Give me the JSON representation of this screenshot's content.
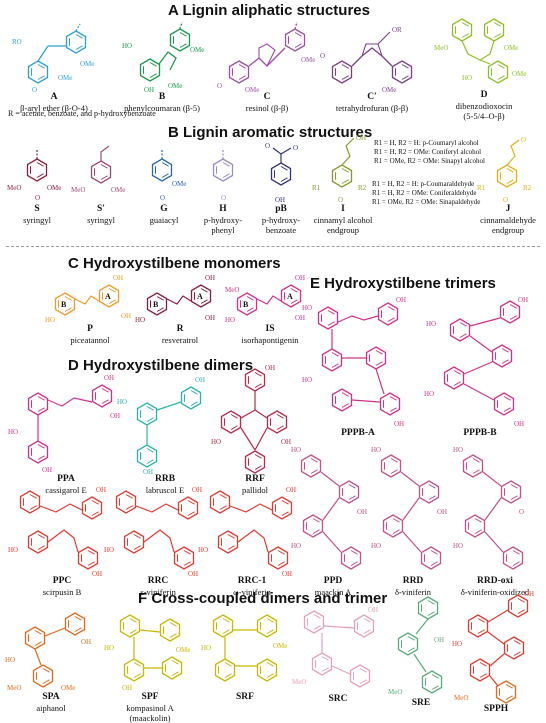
{
  "sections": {
    "A": "A  Lignin aliphatic structures",
    "B": "B  Lignin aromatic structures",
    "C": "C  Hydroxystilbene monomers",
    "D": "D  Hydroxystilbene dimers",
    "E": "E  Hydroxystilbene trimers",
    "F": "F  Cross-coupled dimers and trimer"
  },
  "colors": {
    "blue": "#2f9fd8",
    "green": "#1a9a4a",
    "purple": "#9b4fa6",
    "violet": "#7a3f8a",
    "lime": "#8dbf2a",
    "maroon": "#8a1f3d",
    "darkblue": "#2a67a8",
    "lavender": "#9b8ac4",
    "navy": "#33357a",
    "olive": "#8a9a2a",
    "gold": "#e0b012",
    "orange": "#f09a28",
    "magenta": "#d1338a",
    "crimson": "#b8294a",
    "pink": "#e07aa8",
    "teal": "#2bb3b0",
    "red": "#e03c31",
    "rose": "#c4508c",
    "orange2": "#e06a1e",
    "yellow": "#c9b800",
    "lightpink": "#e8a0bc",
    "seafoam": "#5aaa7a"
  },
  "sectionA": {
    "items": [
      {
        "code": "A",
        "name": "β-aryl ether (β-O-4)"
      },
      {
        "code": "B",
        "name": "phenylcoumaran (β-5)"
      },
      {
        "code": "C",
        "name": "resinol (β-β)"
      },
      {
        "code": "C′",
        "name": "tetrahydrofuran (β-β)"
      },
      {
        "code": "D",
        "name": "dibenzodioxocin",
        "name2": "(5-5/4–O-β)"
      }
    ],
    "note": "R = acetate, benzoate, and p-hydroxybenzoate"
  },
  "sectionB": {
    "items": [
      {
        "code": "S",
        "name": "syringyl"
      },
      {
        "code": "S′",
        "name": "syringyl"
      },
      {
        "code": "G",
        "name": "guaiacyl"
      },
      {
        "code": "H",
        "name": "p-hydroxy-",
        "name2": "phenyl"
      },
      {
        "code": "pB",
        "name": "p-hydroxy-",
        "name2": "benzoate"
      },
      {
        "code": "I",
        "name": "cinnamyl alcohol",
        "name2": "endgroup"
      },
      {
        "code": "J",
        "name": "cinnamaldehyde",
        "name2": "endgroup"
      }
    ],
    "notes_alcohol": [
      "R1 = H, R2 = H: p-Coumaryl alcohol",
      "R1 = H, R2 = OMe: Coniferyl alcohol",
      "R1 = OMe, R2 = OMe: Sinapyl alcohol"
    ],
    "notes_aldehyde": [
      "R1 = H, R2 = H: p-Coumaraldehyde",
      "R1 = H, R2 = OMe: Coniferaldehyde",
      "R1 = OMe, R2 = OMe: Sinapaldehyde"
    ]
  },
  "sectionC": {
    "items": [
      {
        "code": "P",
        "name": "piceatannol"
      },
      {
        "code": "R",
        "name": "resveratrol"
      },
      {
        "code": "IS",
        "name": "isorhapontigenin"
      }
    ]
  },
  "sectionD": {
    "items": [
      {
        "code": "PPA",
        "name": "cassigarol E"
      },
      {
        "code": "RRB",
        "name": "labruscol E"
      },
      {
        "code": "RRF",
        "name": "pallidol"
      },
      {
        "code": "PPC",
        "name": "scirpusin B"
      },
      {
        "code": "RRC",
        "name": "ε-viniferin"
      },
      {
        "code": "RRC-1",
        "name": "ω-viniferin"
      },
      {
        "code": "PPD",
        "name": "maackin A"
      },
      {
        "code": "RRD",
        "name": "δ-viniferin"
      },
      {
        "code": "RRD-oxi",
        "name": "δ-viniferin-oxidized"
      }
    ]
  },
  "sectionE": {
    "items": [
      {
        "code": "PPPB-A",
        "name": ""
      },
      {
        "code": "PPPB-B",
        "name": ""
      }
    ]
  },
  "sectionF": {
    "items": [
      {
        "code": "SPA",
        "name": "aiphanol"
      },
      {
        "code": "SPF",
        "name": "kompasinol A",
        "name2": "(maackolin)"
      },
      {
        "code": "SRF",
        "name": ""
      },
      {
        "code": "SRC",
        "name": ""
      },
      {
        "code": "SRE",
        "name": ""
      },
      {
        "code": "SPPH",
        "name": ""
      }
    ]
  }
}
